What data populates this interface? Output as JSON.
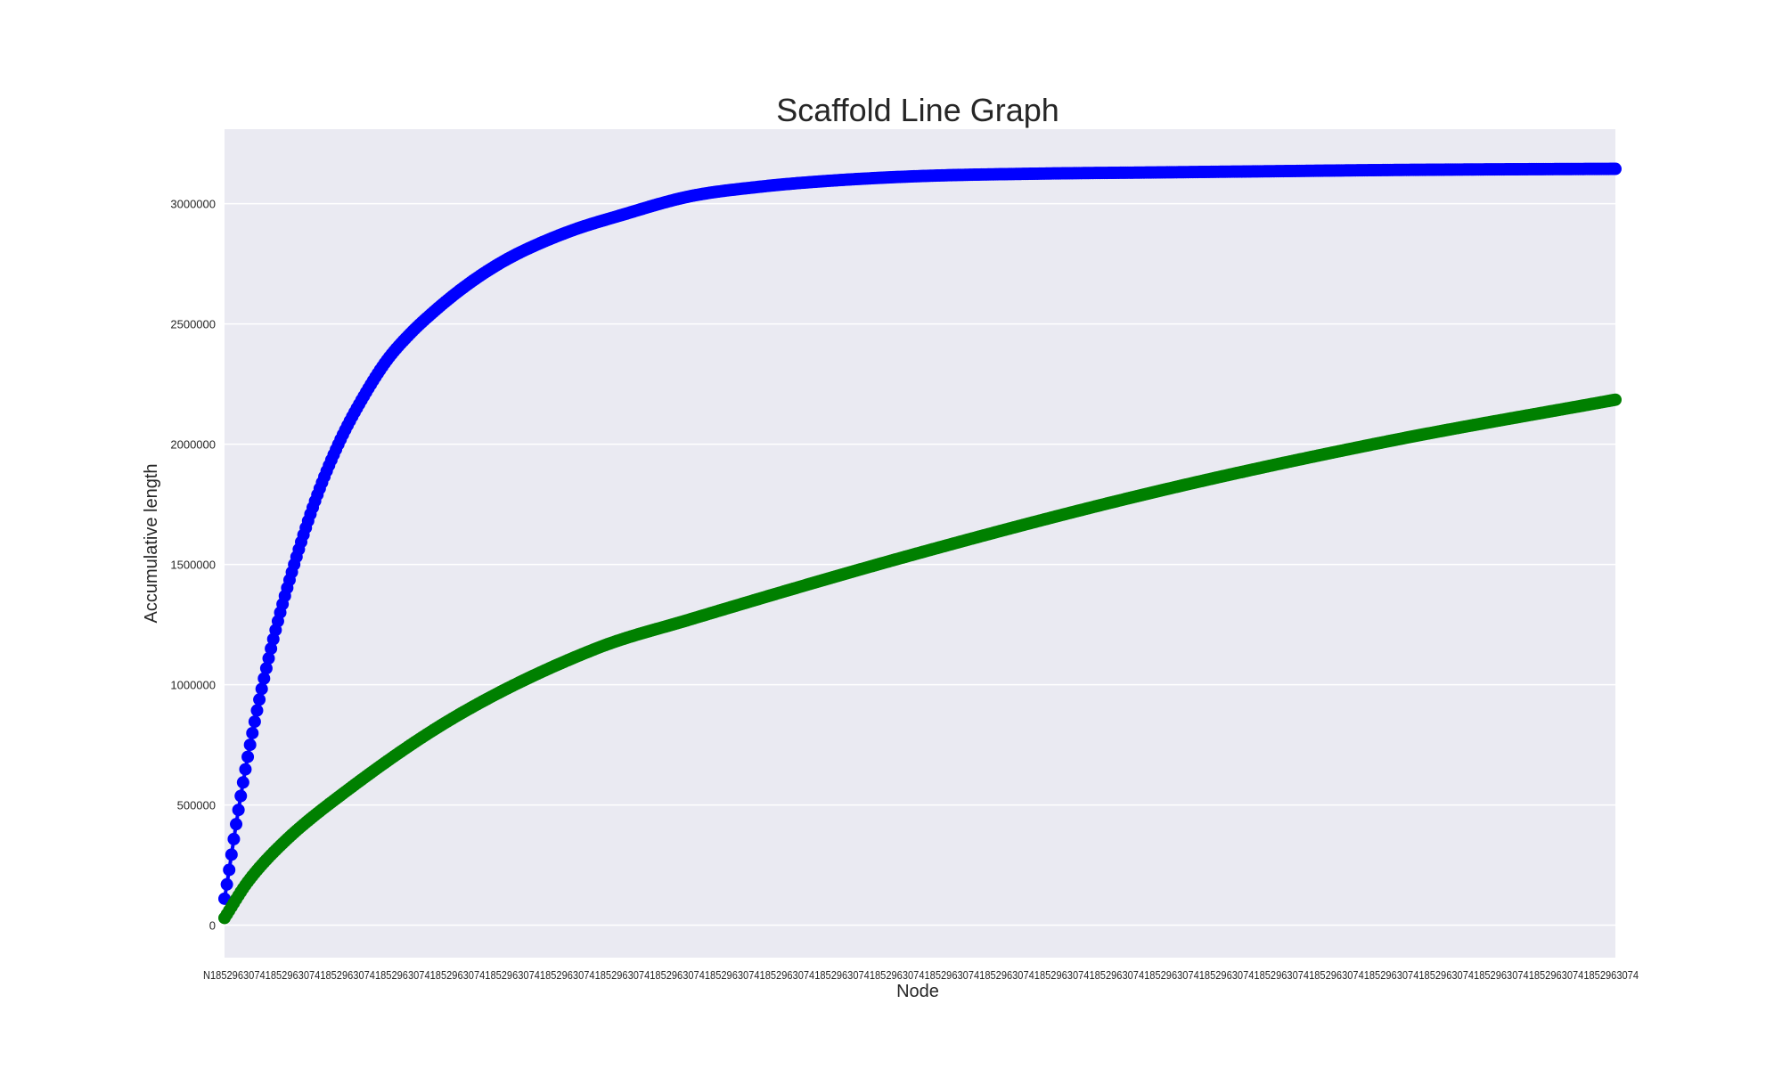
{
  "chart_data": {
    "type": "line",
    "title": "Scaffold Line Graph",
    "xlabel": "Node",
    "ylabel": "Accumulative length",
    "ylim": [
      -135000,
      3310000
    ],
    "yticks": [
      0,
      500000,
      1000000,
      1500000,
      2000000,
      2500000,
      3000000
    ],
    "ytick_labels": [
      "0",
      "500000",
      "1000000",
      "1500000",
      "2000000",
      "2500000",
      "3000000"
    ],
    "x_count": 600,
    "grid": true,
    "background": "#eaeaf2",
    "series": [
      {
        "color": "#0000ff",
        "marker": "circle",
        "anchors_x": [
          0,
          2,
          5,
          10,
          20,
          30,
          40,
          50,
          60,
          70,
          80,
          90,
          100,
          110,
          120,
          130,
          150,
          170,
          200,
          230,
          260,
          300,
          350,
          400,
          450,
          500,
          550,
          599
        ],
        "anchors_y": [
          110000,
          230000,
          420000,
          700000,
          1150000,
          1500000,
          1790000,
          2020000,
          2200000,
          2350000,
          2460000,
          2550000,
          2630000,
          2700000,
          2760000,
          2810000,
          2890000,
          2950000,
          3030000,
          3070000,
          3095000,
          3115000,
          3125000,
          3130000,
          3135000,
          3140000,
          3143000,
          3145000
        ]
      },
      {
        "color": "#008000",
        "marker": "circle",
        "anchors_x": [
          0,
          10,
          25,
          50,
          100,
          160,
          200,
          300,
          400,
          500,
          599
        ],
        "anchors_y": [
          30000,
          180000,
          340000,
          540000,
          870000,
          1150000,
          1270000,
          1550000,
          1800000,
          2010000,
          2185000
        ]
      }
    ]
  }
}
